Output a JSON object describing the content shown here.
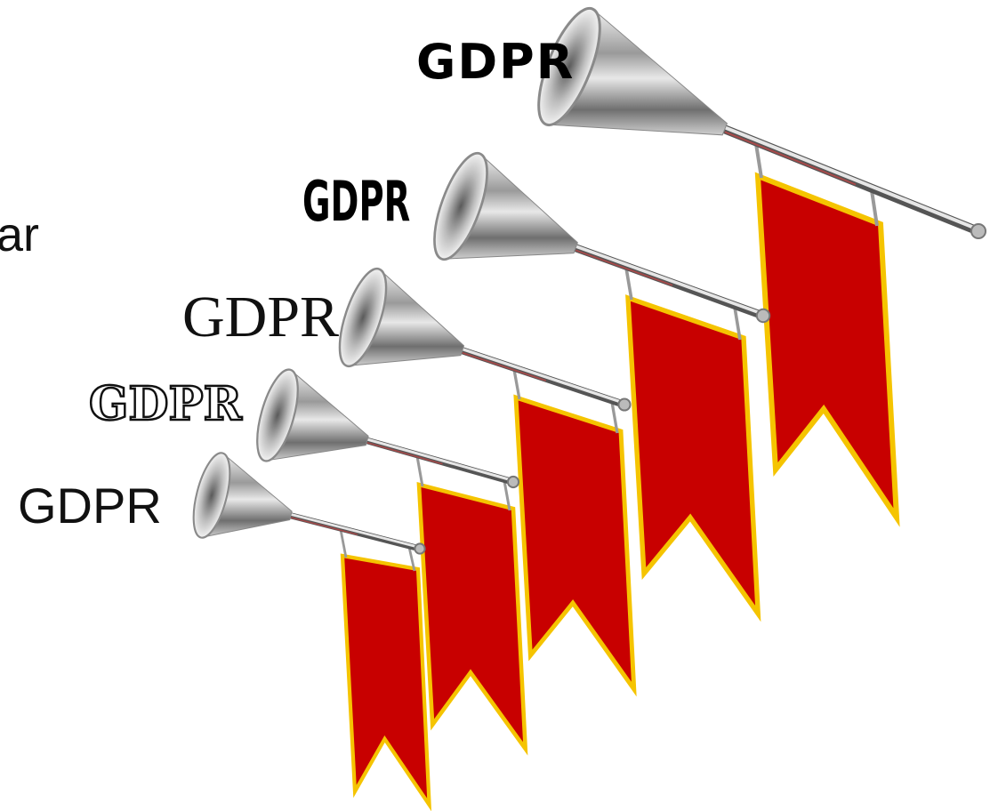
{
  "side_fragment": "ar",
  "labels": [
    "GDPR",
    "GDPR",
    "GDPR",
    "GDPR",
    "GDPR"
  ]
}
